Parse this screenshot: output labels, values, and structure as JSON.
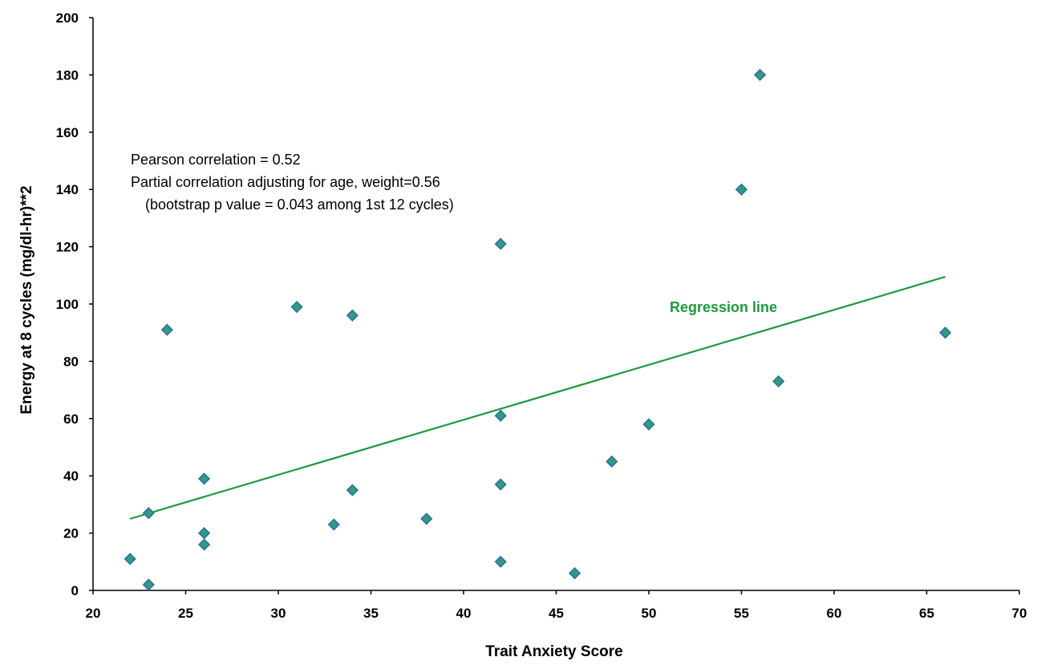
{
  "chart_data": {
    "type": "scatter",
    "title": "",
    "xlabel": "Trait Anxiety Score",
    "ylabel": "Energy at 8 cycles (mg/dl-hr)**2",
    "xlim": [
      20,
      70
    ],
    "ylim": [
      0,
      200
    ],
    "xticks": [
      20,
      25,
      30,
      35,
      40,
      45,
      50,
      55,
      60,
      65,
      70
    ],
    "yticks": [
      0,
      20,
      40,
      60,
      80,
      100,
      120,
      140,
      160,
      180,
      200
    ],
    "grid": false,
    "legend": "none",
    "series": [
      {
        "marker": "diamond",
        "color": "#2e9e74",
        "edge_color": "#2f6db5",
        "x": [
          22,
          23,
          23,
          24,
          26,
          26,
          26,
          31,
          33,
          34,
          34,
          38,
          42,
          42,
          42,
          42,
          46,
          48,
          50,
          55,
          56,
          57,
          66
        ],
        "y": [
          11,
          2,
          27,
          91,
          39,
          20,
          16,
          99,
          23,
          35,
          96,
          25,
          121,
          61,
          37,
          10,
          6,
          45,
          58,
          140,
          180,
          73,
          90
        ]
      }
    ],
    "regression_line": {
      "label": "Regression line",
      "color": "#1e9a3c",
      "x": [
        22,
        66
      ],
      "y": [
        25,
        109.5
      ]
    },
    "annotations": [
      "Pearson correlation = 0.52",
      "Partial correlation adjusting for age, weight=0.56",
      "(bootstrap p value = 0.043 among 1st 12 cycles)"
    ]
  },
  "colors": {
    "axis": "#000000",
    "marker_fill": "#2e9e74",
    "marker_edge": "#2f6db5",
    "regression": "#1e9a3c"
  }
}
